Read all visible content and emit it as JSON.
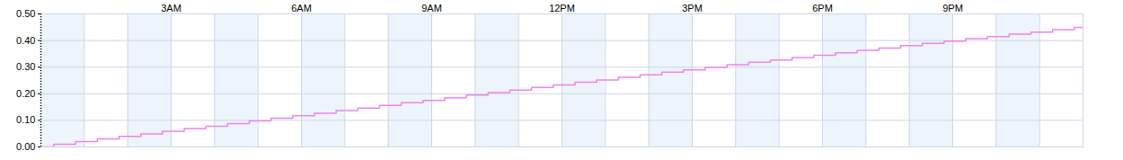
{
  "chart_data": {
    "type": "line",
    "line_style": "step",
    "color": "#ee82ee",
    "grid": true,
    "x": [
      0,
      0.3,
      0.8,
      1.3,
      1.8,
      2.3,
      2.8,
      3.3,
      3.8,
      4.3,
      4.8,
      5.3,
      5.8,
      6.3,
      6.8,
      7.3,
      7.8,
      8.3,
      8.8,
      9.3,
      9.8,
      10.3,
      10.8,
      11.3,
      11.8,
      12.3,
      12.8,
      13.3,
      13.8,
      14.3,
      14.8,
      15.3,
      15.8,
      16.3,
      16.8,
      17.3,
      17.8,
      18.3,
      18.8,
      19.3,
      19.8,
      20.3,
      20.8,
      21.3,
      21.8,
      22.3,
      22.8,
      23.3,
      23.8,
      24
    ],
    "values": [
      0,
      0.01,
      0.02,
      0.03,
      0.04,
      0.049,
      0.059,
      0.069,
      0.078,
      0.088,
      0.098,
      0.108,
      0.117,
      0.127,
      0.137,
      0.146,
      0.156,
      0.166,
      0.175,
      0.185,
      0.195,
      0.204,
      0.214,
      0.224,
      0.233,
      0.243,
      0.252,
      0.262,
      0.271,
      0.281,
      0.29,
      0.299,
      0.309,
      0.318,
      0.327,
      0.336,
      0.345,
      0.354,
      0.363,
      0.372,
      0.381,
      0.389,
      0.398,
      0.407,
      0.415,
      0.424,
      0.432,
      0.441,
      0.449,
      0.449
    ],
    "xlim": [
      0,
      24
    ],
    "xticks": [
      {
        "value": 3,
        "label": "3AM"
      },
      {
        "value": 6,
        "label": "6AM"
      },
      {
        "value": 9,
        "label": "9AM"
      },
      {
        "value": 12,
        "label": "12PM"
      },
      {
        "value": 15,
        "label": "3PM"
      },
      {
        "value": 18,
        "label": "6PM"
      },
      {
        "value": 21,
        "label": "9PM"
      }
    ],
    "ylim": [
      0,
      0.5
    ],
    "yticks": [
      {
        "value": 0,
        "label": "0.00"
      },
      {
        "value": 0.1,
        "label": "0.10"
      },
      {
        "value": 0.2,
        "label": "0.20"
      },
      {
        "value": 0.3,
        "label": "0.30"
      },
      {
        "value": 0.4,
        "label": "0.40"
      },
      {
        "value": 0.5,
        "label": "0.50"
      }
    ]
  }
}
